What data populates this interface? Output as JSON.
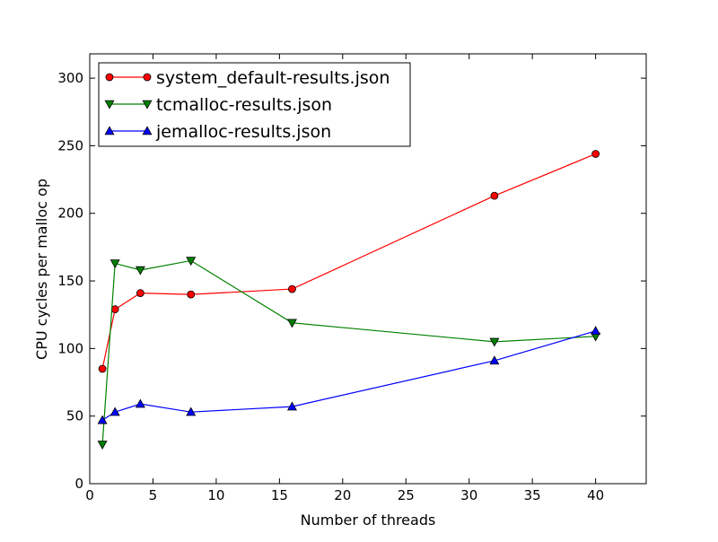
{
  "chart_data": {
    "type": "line",
    "title": "",
    "xlabel": "Number of threads",
    "ylabel": "CPU cycles per malloc op",
    "xlim": [
      0,
      44
    ],
    "ylim": [
      0,
      318
    ],
    "xticks": [
      0,
      5,
      10,
      15,
      20,
      25,
      30,
      35,
      40
    ],
    "yticks": [
      0,
      50,
      100,
      150,
      200,
      250,
      300
    ],
    "grid": false,
    "legend_position": "top-left",
    "series": [
      {
        "name": "system_default-results.json",
        "color": "#ff0000",
        "marker": "circle",
        "x": [
          1,
          2,
          4,
          8,
          16,
          32,
          40
        ],
        "y": [
          85,
          129,
          141,
          140,
          144,
          213,
          244
        ]
      },
      {
        "name": "tcmalloc-results.json",
        "color": "#008000",
        "marker": "triangle-down",
        "x": [
          1,
          2,
          4,
          8,
          16,
          32,
          40
        ],
        "y": [
          29,
          163,
          158,
          165,
          119,
          105,
          109
        ]
      },
      {
        "name": "jemalloc-results.json",
        "color": "#0000ff",
        "marker": "triangle-up",
        "x": [
          1,
          2,
          4,
          8,
          16,
          32,
          40
        ],
        "y": [
          47,
          53,
          59,
          53,
          57,
          91,
          113
        ]
      }
    ]
  }
}
